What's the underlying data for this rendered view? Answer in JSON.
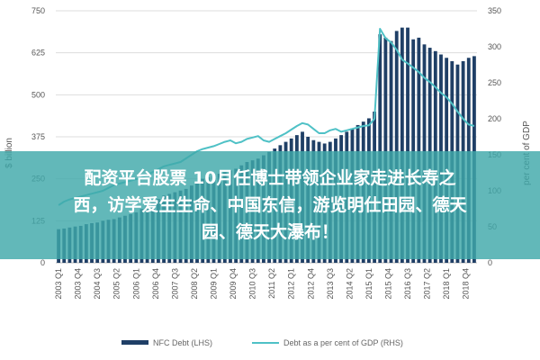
{
  "chart_data": {
    "type": "bar",
    "xlabel": "",
    "ylabel_left": "$ billion",
    "ylabel_right": "per cent of GDP",
    "ylim_left": [
      0,
      750
    ],
    "ylim_right": [
      0,
      350
    ],
    "yticks_left": [
      "0",
      "125",
      "250",
      "375",
      "500",
      "625",
      "750"
    ],
    "yticks_right": [
      "0",
      "50",
      "100",
      "150",
      "200",
      "250",
      "300",
      "350"
    ],
    "xtick_labels": [
      "2003 Q1",
      "2003 Q4",
      "2004 Q3",
      "2005 Q2",
      "2006 Q1",
      "2006 Q4",
      "2007 Q3",
      "2008 Q2",
      "2009 Q1",
      "2009 Q4",
      "2010 Q3",
      "2011 Q2",
      "2012 Q1",
      "2012 Q4",
      "2013 Q3",
      "2014 Q2",
      "2015 Q1",
      "2015 Q4",
      "2016 Q3",
      "2017 Q2",
      "2018 Q1",
      "2018 Q4"
    ],
    "series": [
      {
        "name": "NFC Debt (LHS)",
        "type": "bar",
        "axis": "left",
        "color": "#1f3f66",
        "values": [
          100,
          102,
          105,
          108,
          110,
          115,
          118,
          120,
          125,
          128,
          130,
          135,
          140,
          145,
          150,
          160,
          170,
          180,
          190,
          200,
          205,
          210,
          215,
          220,
          230,
          240,
          250,
          255,
          260,
          265,
          270,
          275,
          280,
          290,
          300,
          305,
          310,
          320,
          330,
          340,
          350,
          360,
          370,
          380,
          390,
          375,
          365,
          360,
          355,
          360,
          370,
          380,
          390,
          400,
          410,
          420,
          430,
          450,
          680,
          670,
          660,
          690,
          700,
          700,
          665,
          670,
          650,
          640,
          630,
          620,
          610,
          600,
          590,
          600,
          610,
          615
        ]
      },
      {
        "name": "Debt as a per cent of GDP (RHS)",
        "type": "line",
        "axis": "right",
        "color": "#4fc1c6",
        "values": [
          80,
          85,
          88,
          90,
          92,
          94,
          96,
          98,
          100,
          104,
          108,
          110,
          112,
          114,
          116,
          118,
          122,
          126,
          130,
          134,
          136,
          138,
          140,
          145,
          150,
          155,
          158,
          160,
          162,
          165,
          168,
          170,
          166,
          168,
          172,
          174,
          176,
          170,
          168,
          172,
          176,
          180,
          185,
          190,
          194,
          192,
          186,
          180,
          180,
          184,
          186,
          182,
          184,
          186,
          188,
          190,
          191,
          200,
          325,
          312,
          306,
          296,
          282,
          277,
          271,
          265,
          257,
          251,
          244,
          236,
          230,
          221,
          210,
          200,
          192,
          190
        ]
      }
    ],
    "legend": [
      {
        "label": "NFC Debt (LHS)",
        "marker": "bar"
      },
      {
        "label": "Debt as a per cent of GDP (RHS)",
        "marker": "line"
      }
    ],
    "legend_position": "bottom",
    "grid": true
  },
  "overlay": {
    "lines": [
      "配资平台股票 10月任博士带领企业家走进长寿之",
      "西，访学爱生生命、中国东信，游览明仕田园、德天",
      "园、德天大瀑布！"
    ]
  }
}
